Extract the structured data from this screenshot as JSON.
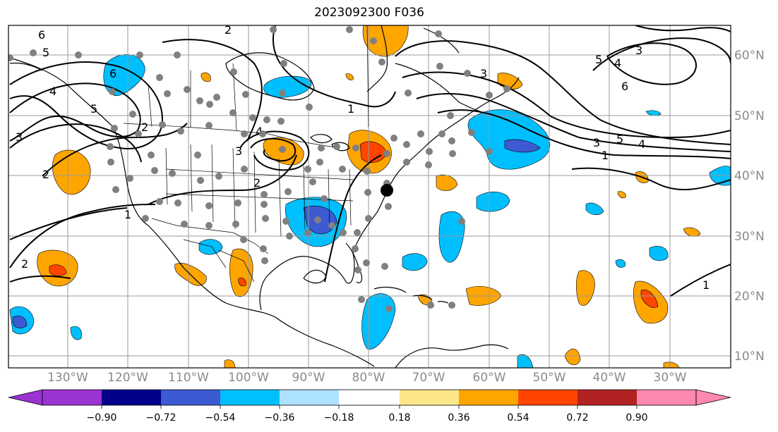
{
  "title": "2023092300 F036",
  "map": {
    "lon_labels": [
      "130°W",
      "120°W",
      "110°W",
      "100°W",
      "90°W",
      "80°W",
      "70°W",
      "60°W",
      "50°W",
      "40°W",
      "30°W"
    ],
    "lat_labels": [
      "60°N",
      "50°N",
      "40°N",
      "30°N",
      "20°N",
      "10°N"
    ],
    "contour_labels": [
      "6",
      "5",
      "4",
      "3",
      "2",
      "1",
      "2",
      "3",
      "4",
      "5",
      "6",
      "1",
      "2",
      "3",
      "5",
      "4",
      "1",
      "3",
      "4",
      "5",
      "6",
      "2",
      "1",
      "2",
      "3"
    ]
  },
  "colorbar": {
    "ticks": [
      "−0.90",
      "−0.72",
      "−0.54",
      "−0.36",
      "−0.18",
      "0.18",
      "0.36",
      "0.54",
      "0.72",
      "0.90"
    ],
    "colors": [
      "#9b32d2",
      "#00008b",
      "#3c5ad2",
      "#00bfff",
      "#aee3ff",
      "#ffffff",
      "#fde68a",
      "#ffa500",
      "#ff4500",
      "#b22222",
      "#ff88b0"
    ]
  },
  "colors": {
    "grid": "#9a9a9a",
    "station": "#808080",
    "coast": "#000000"
  }
}
